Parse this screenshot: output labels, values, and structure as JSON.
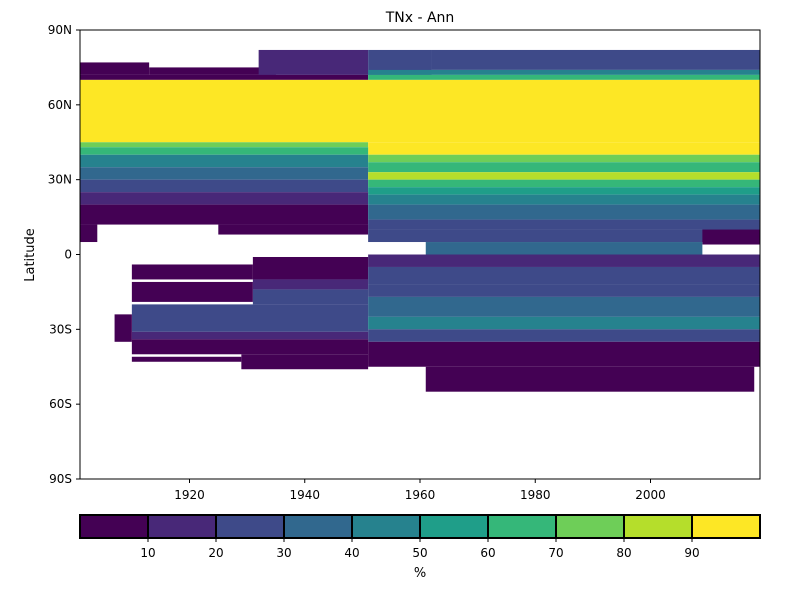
{
  "chart_data": {
    "type": "heatmap",
    "title": "TNx - Ann",
    "xlabel": "",
    "ylabel": "Latitude",
    "xlim": [
      1901,
      2019
    ],
    "ylim": [
      -90,
      90
    ],
    "x_ticks": [
      1920,
      1940,
      1960,
      1980,
      2000
    ],
    "x_tick_labels": [
      "1920",
      "1940",
      "1960",
      "1980",
      "2000"
    ],
    "y_ticks": [
      -90,
      -60,
      -30,
      0,
      30,
      60,
      90
    ],
    "y_tick_labels": [
      "90S",
      "60S",
      "30S",
      "0",
      "30N",
      "60N",
      "90N"
    ],
    "colorbar": {
      "label": "%",
      "boundaries": [
        0,
        10,
        20,
        30,
        40,
        50,
        60,
        70,
        80,
        90,
        100
      ],
      "tick_values": [
        10,
        20,
        30,
        40,
        50,
        60,
        70,
        80,
        90
      ],
      "tick_labels": [
        "10",
        "20",
        "30",
        "40",
        "50",
        "60",
        "70",
        "80",
        "90"
      ],
      "colors": [
        "#440154",
        "#482878",
        "#3e4a89",
        "#31688e",
        "#26828e",
        "#1f9e89",
        "#35b779",
        "#6ece58",
        "#b5de2b",
        "#fde725"
      ]
    },
    "cells": [
      {
        "x0": 1901,
        "x1": 1913,
        "y0": 72,
        "y1": 77,
        "v": 5
      },
      {
        "x0": 1913,
        "x1": 1935,
        "y0": 72,
        "y1": 75,
        "v": 5
      },
      {
        "x0": 1932,
        "x1": 1951,
        "y0": 72,
        "y1": 82,
        "v": 15
      },
      {
        "x0": 1951,
        "x1": 1962,
        "y0": 72,
        "y1": 82,
        "v": 25
      },
      {
        "x0": 1962,
        "x1": 2019,
        "y0": 74,
        "y1": 82,
        "v": 25
      },
      {
        "x0": 1901,
        "x1": 1951,
        "y0": 70,
        "y1": 72,
        "v": 5
      },
      {
        "x0": 1951,
        "x1": 2019,
        "y0": 72,
        "y1": 74,
        "v": 45
      },
      {
        "x0": 1951,
        "x1": 2019,
        "y0": 70,
        "y1": 72,
        "v": 65
      },
      {
        "x0": 1901,
        "x1": 2019,
        "y0": 45,
        "y1": 70,
        "v": 95
      },
      {
        "x0": 1901,
        "x1": 1951,
        "y0": 43,
        "y1": 45,
        "v": 75
      },
      {
        "x0": 1951,
        "x1": 2019,
        "y0": 40,
        "y1": 45,
        "v": 95
      },
      {
        "x0": 1901,
        "x1": 1951,
        "y0": 40,
        "y1": 43,
        "v": 65
      },
      {
        "x0": 1901,
        "x1": 1951,
        "y0": 35,
        "y1": 40,
        "v": 45
      },
      {
        "x0": 1951,
        "x1": 2019,
        "y0": 37,
        "y1": 40,
        "v": 75
      },
      {
        "x0": 1951,
        "x1": 2019,
        "y0": 33,
        "y1": 37,
        "v": 65
      },
      {
        "x0": 1901,
        "x1": 1951,
        "y0": 30,
        "y1": 35,
        "v": 35
      },
      {
        "x0": 1951,
        "x1": 2019,
        "y0": 30,
        "y1": 33,
        "v": 85
      },
      {
        "x0": 1901,
        "x1": 1951,
        "y0": 25,
        "y1": 30,
        "v": 25
      },
      {
        "x0": 1951,
        "x1": 2019,
        "y0": 27,
        "y1": 30,
        "v": 65
      },
      {
        "x0": 1951,
        "x1": 2019,
        "y0": 24,
        "y1": 27,
        "v": 55
      },
      {
        "x0": 1901,
        "x1": 1951,
        "y0": 20,
        "y1": 25,
        "v": 15
      },
      {
        "x0": 1951,
        "x1": 2019,
        "y0": 20,
        "y1": 24,
        "v": 45
      },
      {
        "x0": 1901,
        "x1": 1951,
        "y0": 12,
        "y1": 20,
        "v": 5
      },
      {
        "x0": 1951,
        "x1": 2019,
        "y0": 14,
        "y1": 20,
        "v": 35
      },
      {
        "x0": 1951,
        "x1": 2019,
        "y0": 10,
        "y1": 14,
        "v": 25
      },
      {
        "x0": 1925,
        "x1": 1951,
        "y0": 8,
        "y1": 12,
        "v": 5
      },
      {
        "x0": 1951,
        "x1": 2019,
        "y0": 5,
        "y1": 10,
        "v": 25
      },
      {
        "x0": 1901,
        "x1": 1904,
        "y0": 5,
        "y1": 12,
        "v": 5
      },
      {
        "x0": 2009,
        "x1": 2019,
        "y0": 4,
        "y1": 10,
        "v": 5
      },
      {
        "x0": 1961,
        "x1": 2009,
        "y0": 0,
        "y1": 5,
        "v": 35
      },
      {
        "x0": 1951,
        "x1": 2019,
        "y0": -5,
        "y1": 0,
        "v": 15
      },
      {
        "x0": 1931,
        "x1": 1951,
        "y0": -10,
        "y1": -1,
        "v": 5
      },
      {
        "x0": 1910,
        "x1": 1931,
        "y0": -10,
        "y1": -4,
        "v": 5
      },
      {
        "x0": 1951,
        "x1": 2019,
        "y0": -12,
        "y1": -5,
        "v": 25
      },
      {
        "x0": 1910,
        "x1": 1931,
        "y0": -19,
        "y1": -11,
        "v": 5
      },
      {
        "x0": 1931,
        "x1": 1951,
        "y0": -14,
        "y1": -10,
        "v": 15
      },
      {
        "x0": 1951,
        "x1": 2019,
        "y0": -17,
        "y1": -12,
        "v": 25
      },
      {
        "x0": 1931,
        "x1": 1951,
        "y0": -20,
        "y1": -14,
        "v": 25
      },
      {
        "x0": 1951,
        "x1": 2019,
        "y0": -25,
        "y1": -17,
        "v": 35
      },
      {
        "x0": 1910,
        "x1": 1951,
        "y0": -31,
        "y1": -20,
        "v": 25
      },
      {
        "x0": 1951,
        "x1": 2019,
        "y0": -30,
        "y1": -25,
        "v": 45
      },
      {
        "x0": 1951,
        "x1": 2019,
        "y0": -35,
        "y1": -30,
        "v": 25
      },
      {
        "x0": 1907,
        "x1": 1910,
        "y0": -35,
        "y1": -24,
        "v": 5
      },
      {
        "x0": 1910,
        "x1": 1951,
        "y0": -34,
        "y1": -31,
        "v": 15
      },
      {
        "x0": 1910,
        "x1": 1951,
        "y0": -40,
        "y1": -34,
        "v": 5
      },
      {
        "x0": 1951,
        "x1": 2019,
        "y0": -45,
        "y1": -35,
        "v": 5
      },
      {
        "x0": 1929,
        "x1": 1951,
        "y0": -46,
        "y1": -40,
        "v": 5
      },
      {
        "x0": 1910,
        "x1": 1929,
        "y0": -43,
        "y1": -41,
        "v": 5
      },
      {
        "x0": 1961,
        "x1": 2018,
        "y0": -55,
        "y1": -45,
        "v": 5
      }
    ]
  }
}
